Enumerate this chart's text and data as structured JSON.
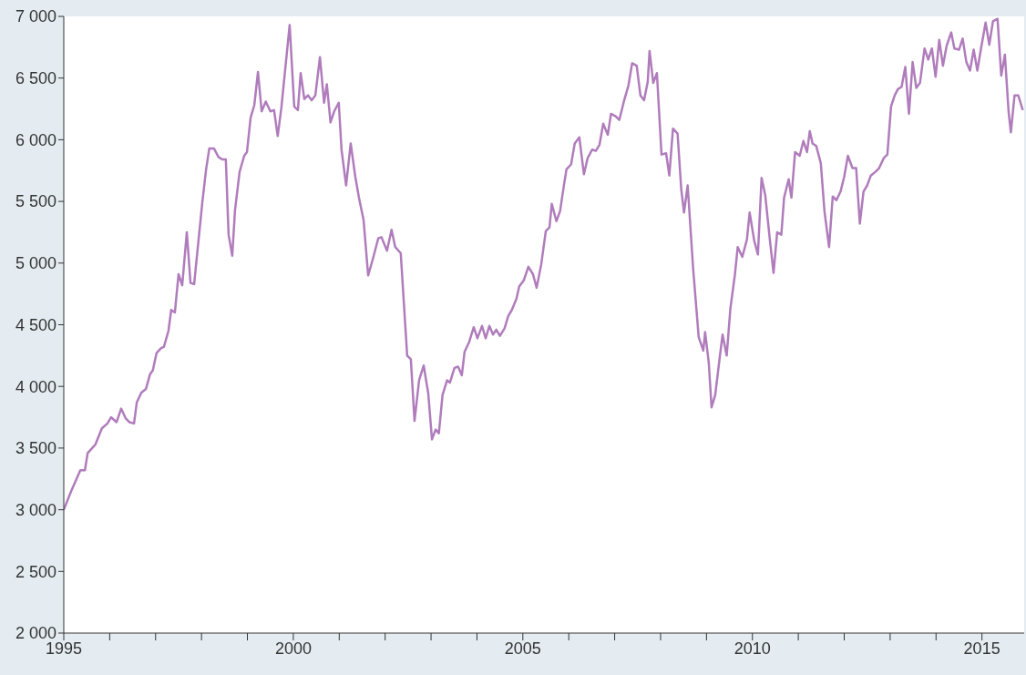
{
  "chart_data": {
    "type": "line",
    "color": "#b07cbc",
    "marker": "none",
    "line_style": "solid",
    "grid": false,
    "legend": false,
    "xlim": [
      1995,
      2015.92
    ],
    "xticks": [
      {
        "value": 1995,
        "label": "1995"
      },
      {
        "value": 1996,
        "label": null
      },
      {
        "value": 1997,
        "label": null
      },
      {
        "value": 1998,
        "label": null
      },
      {
        "value": 1999,
        "label": null
      },
      {
        "value": 2000,
        "label": "2000"
      },
      {
        "value": 2001,
        "label": null
      },
      {
        "value": 2002,
        "label": null
      },
      {
        "value": 2003,
        "label": null
      },
      {
        "value": 2004,
        "label": null
      },
      {
        "value": 2005,
        "label": "2005"
      },
      {
        "value": 2006,
        "label": null
      },
      {
        "value": 2007,
        "label": null
      },
      {
        "value": 2008,
        "label": null
      },
      {
        "value": 2009,
        "label": null
      },
      {
        "value": 2010,
        "label": "2010"
      },
      {
        "value": 2011,
        "label": null
      },
      {
        "value": 2012,
        "label": null
      },
      {
        "value": 2013,
        "label": null
      },
      {
        "value": 2014,
        "label": null
      },
      {
        "value": 2015,
        "label": "2015"
      }
    ],
    "ylim": [
      2000,
      7000
    ],
    "yticks": [
      {
        "value": 2000,
        "label": "2 000"
      },
      {
        "value": 2500,
        "label": "2 500"
      },
      {
        "value": 3000,
        "label": "3 000"
      },
      {
        "value": 3500,
        "label": "3 500"
      },
      {
        "value": 4000,
        "label": "4 000"
      },
      {
        "value": 4500,
        "label": "4 500"
      },
      {
        "value": 5000,
        "label": "5 000"
      },
      {
        "value": 5500,
        "label": "5 500"
      },
      {
        "value": 6000,
        "label": "6 000"
      },
      {
        "value": 6500,
        "label": "6 500"
      },
      {
        "value": 7000,
        "label": "7 000"
      }
    ],
    "x": [
      1995.0,
      1995.16,
      1995.36,
      1995.46,
      1995.52,
      1995.69,
      1995.83,
      1995.95,
      1996.03,
      1996.15,
      1996.25,
      1996.35,
      1996.43,
      1996.53,
      1996.59,
      1996.69,
      1996.79,
      1996.88,
      1996.94,
      1997.02,
      1997.12,
      1997.18,
      1997.28,
      1997.34,
      1997.42,
      1997.5,
      1997.58,
      1997.68,
      1997.76,
      1997.84,
      1997.92,
      1998.02,
      1998.1,
      1998.17,
      1998.27,
      1998.37,
      1998.45,
      1998.53,
      1998.59,
      1998.67,
      1998.73,
      1998.83,
      1998.93,
      1998.99,
      1999.07,
      1999.15,
      1999.23,
      1999.31,
      1999.4,
      1999.5,
      1999.58,
      1999.66,
      1999.74,
      1999.92,
      2000.02,
      2000.1,
      2000.16,
      2000.24,
      2000.32,
      2000.4,
      2000.48,
      2000.58,
      2000.67,
      2000.73,
      2000.81,
      2000.89,
      2000.99,
      2001.05,
      2001.15,
      2001.25,
      2001.35,
      2001.43,
      2001.53,
      2001.63,
      2001.73,
      2001.85,
      2001.92,
      2002.04,
      2002.14,
      2002.22,
      2002.34,
      2002.48,
      2002.56,
      2002.64,
      2002.74,
      2002.84,
      2002.94,
      2003.02,
      2003.1,
      2003.17,
      2003.25,
      2003.35,
      2003.41,
      2003.51,
      2003.59,
      2003.67,
      2003.73,
      2003.83,
      2003.93,
      2004.01,
      2004.11,
      2004.19,
      2004.27,
      2004.35,
      2004.42,
      2004.5,
      2004.6,
      2004.68,
      2004.76,
      2004.86,
      2004.92,
      2005.02,
      2005.12,
      2005.22,
      2005.3,
      2005.4,
      2005.5,
      2005.58,
      2005.63,
      2005.73,
      2005.81,
      2005.89,
      2005.95,
      2006.05,
      2006.13,
      2006.23,
      2006.33,
      2006.41,
      2006.51,
      2006.59,
      2006.67,
      2006.75,
      2006.85,
      2006.92,
      2007.02,
      2007.1,
      2007.2,
      2007.3,
      2007.38,
      2007.48,
      2007.56,
      2007.64,
      2007.72,
      2007.76,
      2007.84,
      2007.92,
      2008.02,
      2008.12,
      2008.19,
      2008.27,
      2008.37,
      2008.45,
      2008.51,
      2008.59,
      2008.71,
      2008.83,
      2008.93,
      2008.97,
      2009.05,
      2009.11,
      2009.19,
      2009.29,
      2009.35,
      2009.44,
      2009.52,
      2009.62,
      2009.68,
      2009.78,
      2009.88,
      2009.94,
      2010.04,
      2010.12,
      2010.2,
      2010.28,
      2010.38,
      2010.46,
      2010.54,
      2010.63,
      2010.69,
      2010.79,
      2010.85,
      2010.93,
      2011.03,
      2011.11,
      2011.19,
      2011.25,
      2011.31,
      2011.39,
      2011.49,
      2011.57,
      2011.67,
      2011.75,
      2011.83,
      2011.92,
      2012.0,
      2012.08,
      2012.18,
      2012.26,
      2012.34,
      2012.42,
      2012.5,
      2012.58,
      2012.68,
      2012.76,
      2012.86,
      2012.94,
      2013.02,
      2013.1,
      2013.17,
      2013.25,
      2013.33,
      2013.41,
      2013.49,
      2013.57,
      2013.65,
      2013.75,
      2013.83,
      2013.91,
      2013.99,
      2014.07,
      2014.15,
      2014.23,
      2014.33,
      2014.4,
      2014.5,
      2014.58,
      2014.66,
      2014.74,
      2014.82,
      2014.9,
      2014.98,
      2015.08,
      2015.16,
      2015.24,
      2015.34,
      2015.42,
      2015.5,
      2015.58,
      2015.63,
      2015.71,
      2015.79,
      2015.89
    ],
    "values": [
      3000,
      3150,
      3320,
      3320,
      3460,
      3530,
      3660,
      3700,
      3750,
      3710,
      3820,
      3740,
      3710,
      3700,
      3870,
      3950,
      3980,
      4100,
      4130,
      4270,
      4310,
      4320,
      4450,
      4620,
      4600,
      4910,
      4820,
      5250,
      4840,
      4830,
      5130,
      5500,
      5760,
      5930,
      5930,
      5860,
      5840,
      5840,
      5230,
      5060,
      5430,
      5740,
      5870,
      5900,
      6180,
      6280,
      6550,
      6230,
      6310,
      6230,
      6240,
      6030,
      6260,
      6930,
      6270,
      6240,
      6540,
      6330,
      6360,
      6320,
      6360,
      6670,
      6300,
      6450,
      6140,
      6230,
      6300,
      5920,
      5630,
      5970,
      5700,
      5530,
      5350,
      4900,
      5030,
      5200,
      5210,
      5100,
      5270,
      5130,
      5080,
      4250,
      4220,
      3720,
      4050,
      4170,
      3940,
      3570,
      3650,
      3620,
      3930,
      4050,
      4030,
      4150,
      4160,
      4090,
      4280,
      4360,
      4480,
      4390,
      4490,
      4390,
      4490,
      4420,
      4460,
      4410,
      4470,
      4570,
      4620,
      4710,
      4810,
      4860,
      4970,
      4910,
      4800,
      4990,
      5260,
      5290,
      5480,
      5340,
      5420,
      5620,
      5760,
      5800,
      5970,
      6020,
      5720,
      5850,
      5920,
      5910,
      5960,
      6130,
      6040,
      6210,
      6190,
      6160,
      6310,
      6440,
      6620,
      6600,
      6360,
      6320,
      6470,
      6720,
      6460,
      6540,
      5880,
      5890,
      5710,
      6090,
      6050,
      5600,
      5410,
      5630,
      4950,
      4400,
      4290,
      4440,
      4190,
      3830,
      3930,
      4240,
      4420,
      4250,
      4630,
      4910,
      5130,
      5050,
      5190,
      5410,
      5180,
      5070,
      5690,
      5550,
      5190,
      4920,
      5250,
      5230,
      5530,
      5680,
      5530,
      5900,
      5870,
      5990,
      5900,
      6070,
      5970,
      5950,
      5810,
      5420,
      5130,
      5540,
      5510,
      5580,
      5700,
      5870,
      5770,
      5770,
      5320,
      5580,
      5630,
      5710,
      5740,
      5770,
      5850,
      5880,
      6270,
      6360,
      6410,
      6430,
      6590,
      6210,
      6630,
      6420,
      6460,
      6740,
      6650,
      6740,
      6510,
      6810,
      6600,
      6760,
      6870,
      6740,
      6730,
      6820,
      6630,
      6560,
      6730,
      6560,
      6740,
      6950,
      6770,
      6960,
      6980,
      6520,
      6690,
      6230,
      6060,
      6360,
      6360,
      6240
    ]
  }
}
